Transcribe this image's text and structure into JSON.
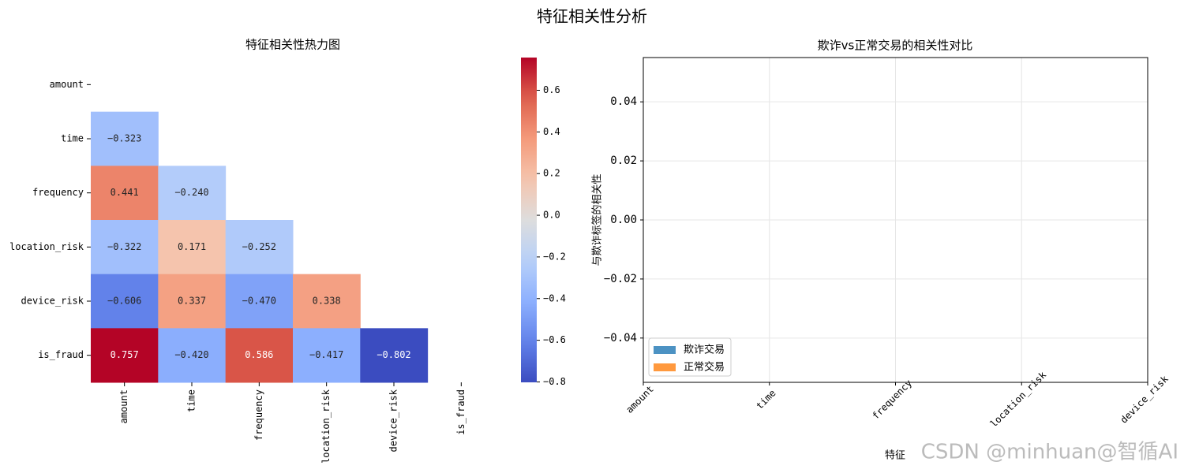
{
  "title": "特征相关性分析",
  "watermark": "CSDN @minhuan@智循AI",
  "chart_data": [
    {
      "type": "heatmap",
      "title": "特征相关性热力图",
      "x_categories": [
        "amount",
        "time",
        "frequency",
        "location_risk",
        "device_risk",
        "is_fraud"
      ],
      "y_categories": [
        "amount",
        "time",
        "frequency",
        "location_risk",
        "device_risk",
        "is_fraud"
      ],
      "values": [
        [
          null,
          null,
          null,
          null,
          null,
          null
        ],
        [
          -0.323,
          null,
          null,
          null,
          null,
          null
        ],
        [
          0.441,
          -0.24,
          null,
          null,
          null,
          null
        ],
        [
          -0.322,
          0.171,
          -0.252,
          null,
          null,
          null
        ],
        [
          -0.606,
          0.337,
          -0.47,
          0.338,
          null,
          null
        ],
        [
          0.757,
          -0.42,
          0.586,
          -0.417,
          -0.802,
          null
        ]
      ],
      "value_labels": [
        [
          null,
          null,
          null,
          null,
          null,
          null
        ],
        [
          "−0.323",
          null,
          null,
          null,
          null,
          null
        ],
        [
          "0.441",
          "−0.240",
          null,
          null,
          null,
          null
        ],
        [
          "−0.322",
          "0.171",
          "−0.252",
          null,
          null,
          null
        ],
        [
          "−0.606",
          "0.337",
          "−0.470",
          "0.338",
          null,
          null
        ],
        [
          "0.757",
          "−0.420",
          "0.586",
          "−0.417",
          "−0.802",
          null
        ]
      ],
      "colormap": "coolwarm",
      "clim": [
        -0.802,
        0.757
      ],
      "cticks": [
        0.6,
        0.4,
        0.2,
        {
          "value": 0,
          "label": "0.0"
        },
        {
          "value": -0.2,
          "label": "−0.2"
        },
        {
          "value": -0.4,
          "label": "−0.4"
        },
        {
          "value": -0.6,
          "label": "−0.6"
        },
        {
          "value": -0.8,
          "label": "−0.8"
        }
      ]
    },
    {
      "type": "bar",
      "title": "欺诈vs正常交易的相关性对比",
      "xlabel": "特征",
      "ylabel": "与欺诈标签的相关性",
      "categories": [
        "amount",
        "time",
        "frequency",
        "location_risk",
        "device_risk"
      ],
      "series": [
        {
          "name": "欺诈交易",
          "color": "#1f77b4",
          "values": [
            null,
            null,
            null,
            null,
            null
          ]
        },
        {
          "name": "正常交易",
          "color": "#ff7f0e",
          "values": [
            null,
            null,
            null,
            null,
            null
          ]
        }
      ],
      "ylim": [
        -0.055,
        0.055
      ],
      "yticks": [
        0.04,
        0.02,
        {
          "value": 0,
          "label": "0.00"
        },
        {
          "value": -0.02,
          "label": "−0.02"
        },
        {
          "value": -0.04,
          "label": "−0.04"
        }
      ],
      "grid": true,
      "legend": "lower left"
    }
  ]
}
